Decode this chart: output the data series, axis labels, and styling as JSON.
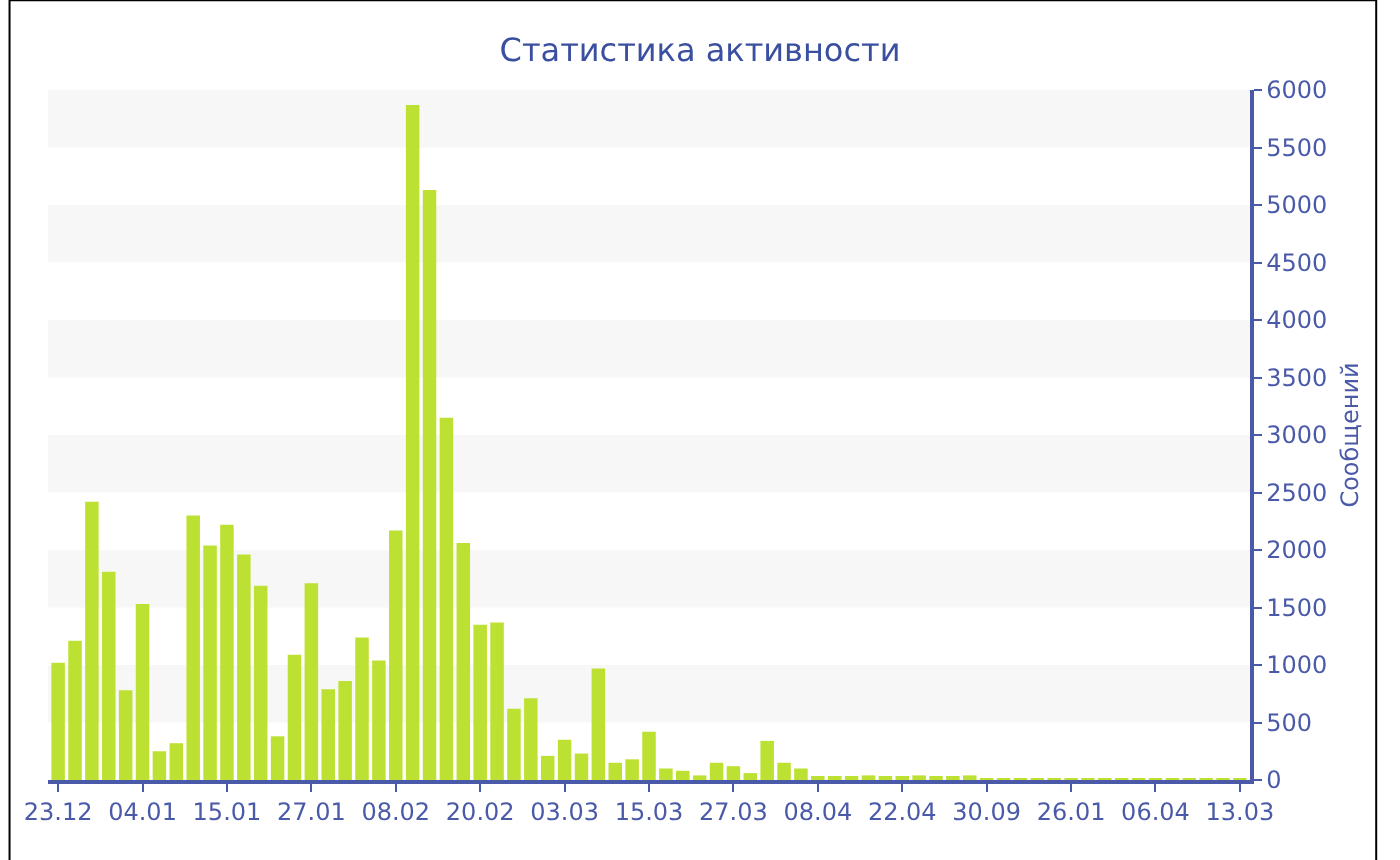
{
  "chart_data": {
    "type": "bar",
    "title": "Статистика активности",
    "ylabel": "Сообщений",
    "categories": [
      "23.12",
      null,
      null,
      null,
      null,
      "04.01",
      null,
      null,
      null,
      null,
      "15.01",
      null,
      null,
      null,
      null,
      "27.01",
      null,
      null,
      null,
      null,
      "08.02",
      null,
      null,
      null,
      null,
      "20.02",
      null,
      null,
      null,
      null,
      "03.03",
      null,
      null,
      null,
      null,
      "15.03",
      null,
      null,
      null,
      null,
      "27.03",
      null,
      null,
      null,
      null,
      "08.04",
      null,
      null,
      null,
      null,
      "22.04",
      null,
      null,
      null,
      null,
      "30.09",
      null,
      null,
      null,
      null,
      "26.01",
      null,
      null,
      null,
      null,
      "06.04",
      null,
      null,
      null,
      null,
      "13.03"
    ],
    "values": [
      1020,
      1210,
      2420,
      1810,
      780,
      1530,
      250,
      320,
      2300,
      2040,
      2220,
      1960,
      1690,
      380,
      1090,
      1710,
      790,
      860,
      1240,
      1040,
      2170,
      5870,
      5130,
      3150,
      2060,
      1350,
      1370,
      620,
      710,
      210,
      350,
      230,
      970,
      150,
      180,
      420,
      100,
      80,
      40,
      150,
      120,
      60,
      340,
      150,
      100,
      30,
      20,
      20,
      40,
      20,
      20,
      40,
      20,
      20,
      40,
      10,
      10,
      10,
      10,
      10,
      10,
      10,
      10,
      10,
      10,
      10,
      10,
      10,
      10,
      10,
      10
    ],
    "color": "#bde132",
    "ylim": [
      0,
      6000
    ],
    "yticks": [
      0,
      500,
      1000,
      1500,
      2000,
      2500,
      3000,
      3500,
      4000,
      4500,
      5000,
      5500,
      6000
    ],
    "grid": false
  }
}
